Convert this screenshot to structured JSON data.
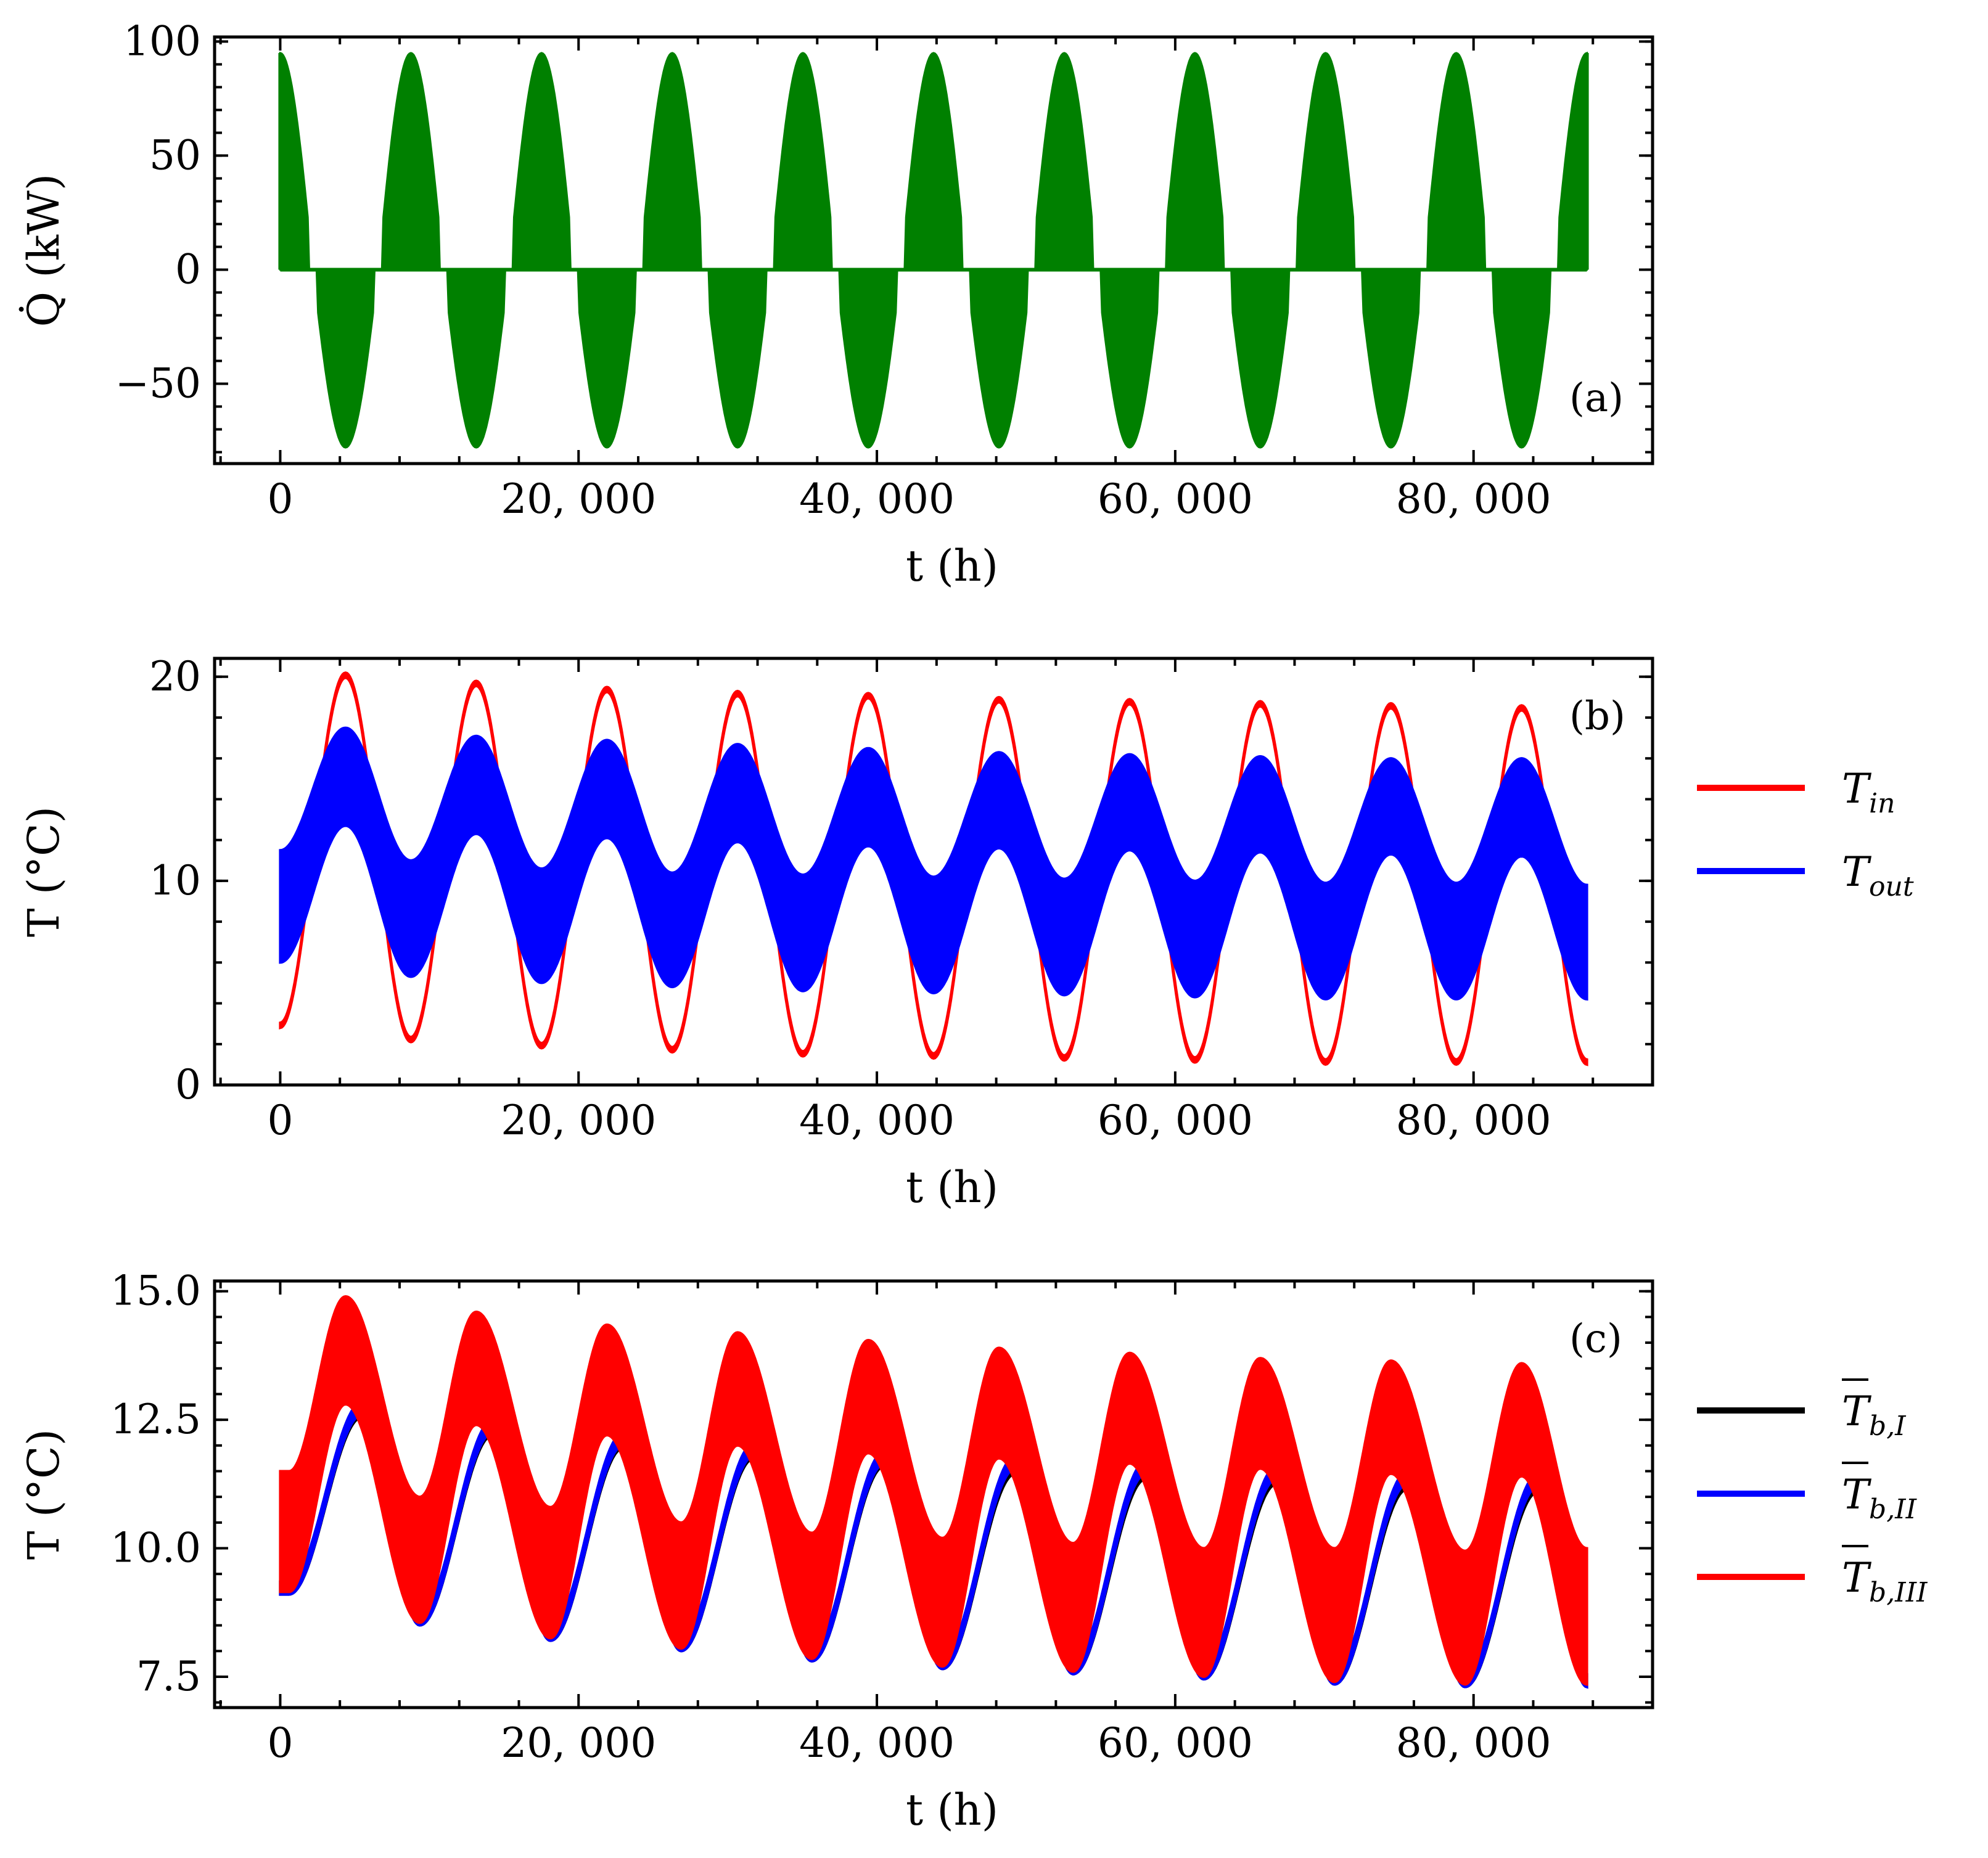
{
  "chart_data": [
    {
      "type": "area",
      "panel_tag": "(a)",
      "xlabel": "t (h)",
      "ylabel": "Q̇ (kW)",
      "xlim": [
        -4400,
        92000
      ],
      "ylim": [
        -85,
        102
      ],
      "xticks": [
        0,
        20000,
        40000,
        60000,
        80000
      ],
      "xtick_labels": [
        "0",
        "20, 000",
        "40, 000",
        "60, 000",
        "80, 000"
      ],
      "yticks": [
        -50,
        0,
        50,
        100
      ],
      "ytick_labels": [
        "−50",
        "0",
        "50",
        "100"
      ],
      "series": [
        {
          "color": "#008000",
          "description_values": {
            "period_h": 8760,
            "upper_envelope_max": 95,
            "lower_envelope_min": -78,
            "zero_segments": "load alternates between heating (+) and cooling (−) seasons, band filled to 0"
          },
          "t": [
            0,
            2190,
            4380,
            6570,
            8760,
            10950,
            13140,
            15330,
            17520,
            19710,
            21900,
            24090,
            26280,
            28470,
            30660,
            32850,
            35040,
            37230,
            39420,
            41610,
            43800,
            45990,
            48180,
            50370,
            52560,
            54750,
            56940,
            59130,
            61320,
            63510,
            65700,
            67890,
            70080,
            72270,
            74460,
            76650,
            78840,
            81030,
            83220,
            85410,
            87600
          ],
          "envelope": [
            95,
            0,
            -78,
            0,
            95,
            0,
            -78,
            0,
            95,
            0,
            -78,
            0,
            95,
            0,
            -78,
            0,
            95,
            0,
            -78,
            0,
            95,
            0,
            -78,
            0,
            95,
            0,
            -78,
            0,
            95,
            0,
            -78,
            0,
            95,
            0,
            -78,
            0,
            95,
            0,
            -78,
            0,
            95
          ]
        }
      ]
    },
    {
      "type": "area",
      "panel_tag": "(b)",
      "xlabel": "t (h)",
      "ylabel": "T (°C)",
      "xlim": [
        -4400,
        92000
      ],
      "ylim": [
        0,
        20.9
      ],
      "xticks": [
        0,
        20000,
        40000,
        60000,
        80000
      ],
      "xtick_labels": [
        "0",
        "20, 000",
        "40, 000",
        "60, 000",
        "80, 000"
      ],
      "yticks": [
        0,
        10,
        20
      ],
      "ytick_labels": [
        "0",
        "10",
        "20"
      ],
      "legend": [
        {
          "label": "T",
          "sub": "in",
          "color": "#ff0000"
        },
        {
          "label": "T",
          "sub": "out",
          "color": "#0000ff"
        }
      ],
      "legend_position": "outside-right",
      "series": [
        {
          "name": "T_in",
          "color": "#ff0000",
          "t_peaks": [
            4380,
            13140,
            21900,
            30660,
            39420,
            48180,
            56940,
            65700,
            74460,
            83220
          ],
          "upper_peaks": [
            20.2,
            19.8,
            19.5,
            19.3,
            19.2,
            19.0,
            18.9,
            18.8,
            18.7,
            18.6
          ],
          "t_troughs": [
            0,
            8760,
            17520,
            26280,
            35040,
            43800,
            52560,
            61320,
            70080,
            78840,
            87600
          ],
          "lower_troughs": [
            2.8,
            2.1,
            1.8,
            1.6,
            1.4,
            1.3,
            1.2,
            1.1,
            1.0,
            1.0,
            1.0
          ]
        },
        {
          "name": "T_out",
          "color": "#0000ff",
          "t_peaks": [
            4380,
            13140,
            21900,
            30660,
            39420,
            48180,
            56940,
            65700,
            74460,
            83220
          ],
          "upper_peaks": [
            17.5,
            17.1,
            16.9,
            16.7,
            16.5,
            16.3,
            16.2,
            16.1,
            16.0,
            16.0
          ],
          "t_troughs": [
            0,
            8760,
            17520,
            26280,
            35040,
            43800,
            52560,
            61320,
            70080,
            78840,
            87600
          ],
          "lower_troughs": [
            6.0,
            5.3,
            5.0,
            4.8,
            4.6,
            4.5,
            4.4,
            4.3,
            4.2,
            4.2,
            4.2
          ],
          "mid_values": [
            11.5,
            12.7,
            11.0,
            12.3,
            10.6,
            12.1,
            10.4,
            11.9,
            10.3,
            11.7,
            10.2,
            11.6,
            10.1,
            11.5,
            10.0,
            11.4,
            9.9,
            11.3,
            9.9,
            11.2,
            9.8
          ]
        }
      ]
    },
    {
      "type": "area",
      "panel_tag": "(c)",
      "xlabel": "t (h)",
      "ylabel": "T (°C)",
      "xlim": [
        -4400,
        92000
      ],
      "ylim": [
        6.9,
        15.2
      ],
      "xticks": [
        0,
        20000,
        40000,
        60000,
        80000
      ],
      "xtick_labels": [
        "0",
        "20, 000",
        "40, 000",
        "60, 000",
        "80, 000"
      ],
      "yticks": [
        7.5,
        10.0,
        12.5,
        15.0
      ],
      "ytick_labels": [
        "7.5",
        "10.0",
        "12.5",
        "15.0"
      ],
      "legend": [
        {
          "label": "T",
          "sub": "b,I",
          "color": "#000000"
        },
        {
          "label": "T",
          "sub": "b,II",
          "color": "#0000ff"
        },
        {
          "label": "T",
          "sub": "b,III",
          "color": "#ff0000"
        }
      ],
      "legend_position": "outside-right",
      "series": [
        {
          "name": "T_b,I",
          "color": "#000000",
          "t_peaks": [
            5500,
            14260,
            23020,
            31780,
            40540,
            49300,
            58060,
            66820,
            75580,
            84340
          ],
          "upper_peaks": [
            12.8,
            12.45,
            12.2,
            12.0,
            11.85,
            11.7,
            11.6,
            11.5,
            11.4,
            11.35
          ],
          "t_troughs": [
            600,
            9360,
            18120,
            26880,
            35640,
            44400,
            53160,
            61920,
            70680,
            79440,
            87600
          ],
          "lower_troughs": [
            9.1,
            8.5,
            8.2,
            8.0,
            7.8,
            7.65,
            7.55,
            7.45,
            7.35,
            7.3,
            7.3
          ]
        },
        {
          "name": "T_b,II",
          "color": "#0000ff",
          "t_peaks": [
            5500,
            14260,
            23020,
            31780,
            40540,
            49300,
            58060,
            66820,
            75580,
            84340
          ],
          "upper_peaks": [
            12.85,
            12.5,
            12.25,
            12.05,
            11.9,
            11.8,
            11.7,
            11.6,
            11.5,
            11.45
          ],
          "t_troughs": [
            600,
            9360,
            18120,
            26880,
            35640,
            44400,
            53160,
            61920,
            70680,
            79440,
            87600
          ],
          "lower_troughs": [
            9.1,
            8.5,
            8.2,
            8.0,
            7.8,
            7.65,
            7.55,
            7.45,
            7.35,
            7.3,
            7.3
          ]
        },
        {
          "name": "T_b,III",
          "color": "#ff0000",
          "t_peaks": [
            4380,
            13140,
            21900,
            30660,
            39420,
            48180,
            56940,
            65700,
            74460,
            83220
          ],
          "upper_peaks": [
            14.9,
            14.6,
            14.35,
            14.2,
            14.05,
            13.9,
            13.8,
            13.7,
            13.65,
            13.6
          ],
          "t_troughs": [
            600,
            9360,
            18120,
            26880,
            35640,
            44400,
            53160,
            61920,
            70680,
            79440,
            87600
          ],
          "lower_troughs": [
            9.15,
            8.55,
            8.25,
            8.05,
            7.85,
            7.7,
            7.6,
            7.5,
            7.4,
            7.35,
            7.35
          ],
          "mid_values": [
            11.5,
            12.8,
            11.0,
            12.4,
            10.8,
            12.2,
            10.5,
            12.0,
            10.3,
            11.85,
            10.2,
            11.75,
            10.1,
            11.65,
            10.0,
            11.55,
            10.0,
            11.45,
            9.95,
            11.4,
            10.0
          ]
        }
      ]
    }
  ]
}
